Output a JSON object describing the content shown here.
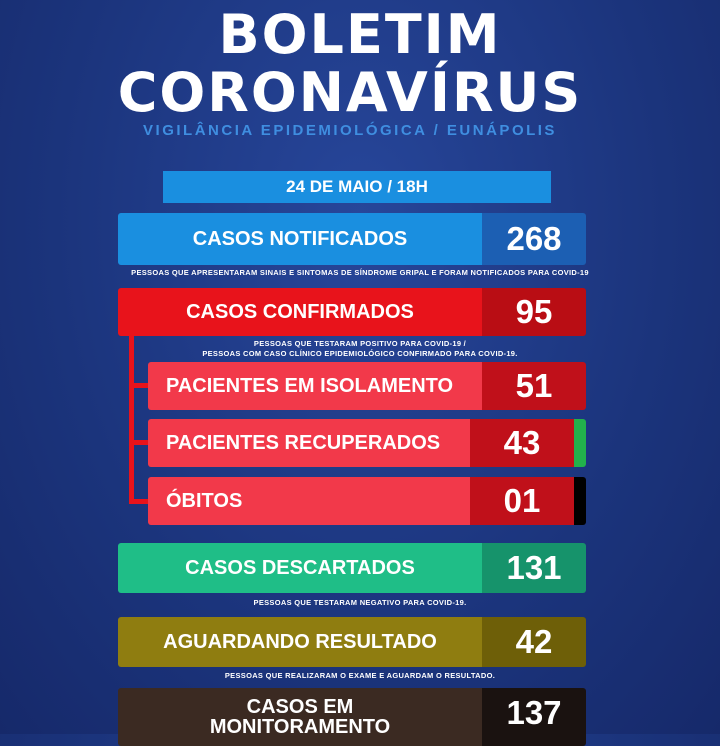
{
  "header": {
    "title_line1": "BOLETIM",
    "title_line2": "CORONAVÍRUS",
    "subtitle": "VIGILÂNCIA EPIDEMIOLÓGICA / EUNÁPOLIS",
    "date": "24 DE MAIO / 18H"
  },
  "rows": {
    "notificados": {
      "label": "CASOS NOTIFICADOS",
      "value": "268",
      "note": "PESSOAS QUE APRESENTARAM SINAIS E SINTOMAS DE SÍNDROME GRIPAL E FORAM NOTIFICADOS PARA COVID-19"
    },
    "confirmados": {
      "label": "CASOS CONFIRMADOS",
      "value": "95",
      "note_line1": "PESSOAS QUE TESTARAM POSITIVO PARA COVID-19 /",
      "note_line2": "PESSOAS COM CASO CLÍNICO EPIDEMIOLÓGICO CONFIRMADO PARA COVID-19."
    },
    "isolamento": {
      "label": "PACIENTES EM ISOLAMENTO",
      "value": "51"
    },
    "recuperados": {
      "label": "PACIENTES RECUPERADOS",
      "value": "43"
    },
    "obitos": {
      "label": "ÓBITOS",
      "value": "01"
    },
    "descartados": {
      "label": "CASOS DESCARTADOS",
      "value": "131",
      "note": "PESSOAS QUE TESTARAM NEGATIVO PARA COVID-19."
    },
    "aguardando": {
      "label": "AGUARDANDO RESULTADO",
      "value": "42",
      "note": "PESSOAS QUE REALIZARAM O EXAME E AGUARDAM O RESULTADO."
    },
    "monitoramento": {
      "label_line1": "CASOS EM",
      "label_line2": "MONITORAMENTO",
      "value": "137"
    }
  },
  "colors": {
    "background": "#1b347c",
    "notificados_label": "#1a8fe0",
    "notificados_value": "#1c5fb3",
    "confirmados_label": "#e8131b",
    "confirmados_value": "#b90d14",
    "sub_label": "#f2394a",
    "sub_value": "#c0101a",
    "recuperados_accent": "#22b14c",
    "obitos_accent": "#000000",
    "descartados_label": "#1fbe87",
    "descartados_value": "#16936b",
    "aguardando_label": "#8f7d10",
    "aguardando_value": "#6e5f08",
    "monitoramento_label": "#3b2a22",
    "monitoramento_value": "#1a1210"
  }
}
